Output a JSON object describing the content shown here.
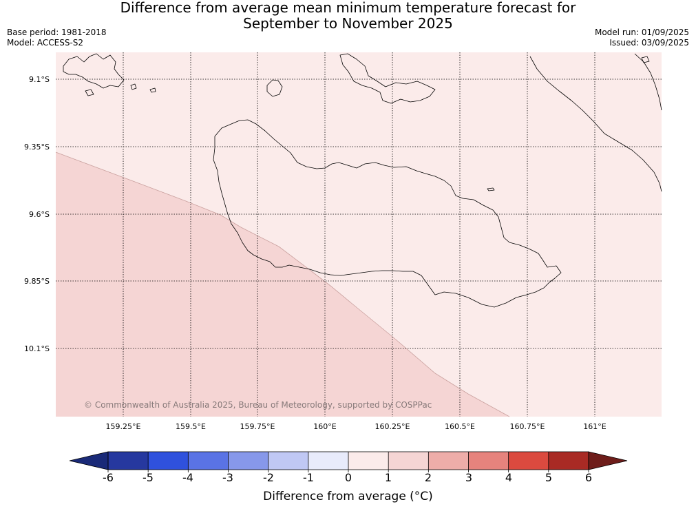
{
  "header": {
    "title_line1": "Difference from average mean minimum temperature forecast for",
    "title_line2": "September to November 2025",
    "base_period": "Base period: 1981-2018",
    "model": "Model: ACCESS-S2",
    "model_run": "Model run: 01/09/2025",
    "issued": "Issued: 03/09/2025"
  },
  "map": {
    "lat_labels": [
      "9.1°S",
      "9.35°S",
      "9.6°S",
      "9.85°S",
      "10.1°S"
    ],
    "lon_labels": [
      "159.25°E",
      "159.5°E",
      "159.75°E",
      "160°E",
      "160.25°E",
      "160.5°E",
      "160.75°E",
      "161°E"
    ],
    "regions": [
      {
        "range": "0 to 1",
        "color": "#fbebea"
      },
      {
        "range": "1 to 2",
        "color": "#f5d5d4"
      }
    ],
    "coastline_color": "#000000",
    "copyright": "© Commonwealth of Australia 2025, Bureau of Meteorology, supported by COSPPac"
  },
  "colorbar": {
    "ticks": [
      "-6",
      "-5",
      "-4",
      "-3",
      "-2",
      "-1",
      "0",
      "1",
      "2",
      "3",
      "4",
      "5",
      "6"
    ],
    "colors": [
      "#26389f",
      "#2f51dd",
      "#5a73e5",
      "#8798ea",
      "#c0c8f4",
      "#e8ebfb",
      "#fbebea",
      "#f5d5d4",
      "#eeada9",
      "#e6837d",
      "#db4a3f",
      "#a92a24"
    ],
    "under_color": "#1a2a78",
    "over_color": "#6e1d1a",
    "label": "Difference from average (°C)"
  }
}
